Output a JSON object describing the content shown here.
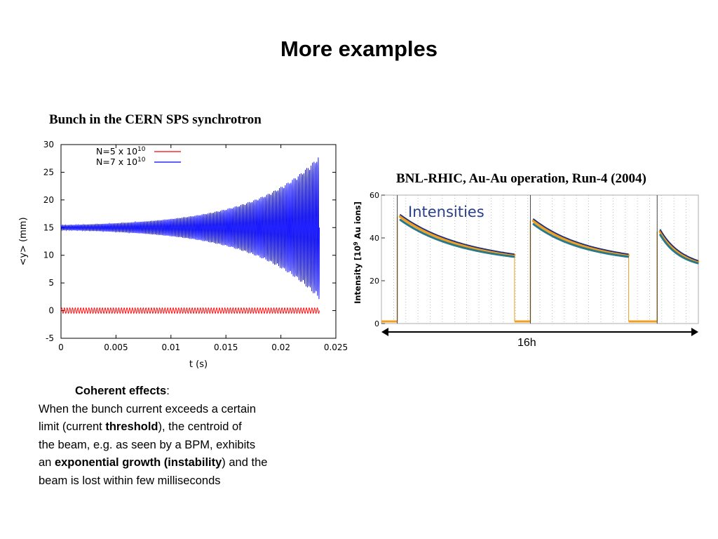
{
  "slide": {
    "title": "More examples",
    "left_caption": "Bunch in the CERN SPS synchrotron",
    "right_caption": "BNL-RHIC, Au-Au operation, Run-4 (2004)",
    "span_label": "16h",
    "body": {
      "heading": "Coherent effects",
      "heading_colon": ":",
      "line1": "When the bunch current exceeds a certain",
      "line2a": "limit (current ",
      "line2b": "threshold",
      "line2c": "), the centroid of",
      "line3": "the beam, e.g. as seen by a BPM, exhibits",
      "line4a": "an ",
      "line4b": "exponential growth (instability",
      "line4c": ") and the",
      "line5": "beam is lost within few milliseconds"
    }
  },
  "chart_data": [
    {
      "type": "line",
      "xlabel": "t (s)",
      "ylabel": "<y> (mm)",
      "xlim": [
        0,
        0.025
      ],
      "ylim": [
        -5,
        30
      ],
      "xticks": [
        "0",
        "0.005",
        "0.01",
        "0.015",
        "0.02",
        "0.025"
      ],
      "yticks": [
        "-5",
        "0",
        "5",
        "10",
        "15",
        "20",
        "25",
        "30"
      ],
      "legend_position": "top-left",
      "series": [
        {
          "name_base": "N=5 x 10",
          "name_exp": "10",
          "color": "#ff0000",
          "mean": 0,
          "amplitude": 0.5,
          "growth": false,
          "t_end": 0.0235
        },
        {
          "name_base": "N=7 x 10",
          "name_exp": "10",
          "color": "#0000ff",
          "mean": 15,
          "amplitude_start": 0.45,
          "amplitude_end": 13,
          "growth": true,
          "t_end": 0.0235
        }
      ]
    },
    {
      "type": "line",
      "title": "Intensities",
      "ylabel_base": "Intensity [10",
      "ylabel_exp": "9",
      "ylabel_tail": " Au ions]",
      "ylim": [
        0,
        60
      ],
      "yticks": [
        "0",
        "20",
        "40",
        "60"
      ],
      "fills": [
        {
          "start": 0.05,
          "end": 0.42,
          "peak": 50,
          "final": 32
        },
        {
          "start": 0.47,
          "end": 0.78,
          "peak": 48,
          "final": 32
        },
        {
          "start": 0.87,
          "end": 1.0,
          "peak": 43,
          "final": 29
        }
      ],
      "colors": {
        "orange": "#f0a020",
        "teal": "#2a7888",
        "navy": "#203080"
      }
    }
  ]
}
